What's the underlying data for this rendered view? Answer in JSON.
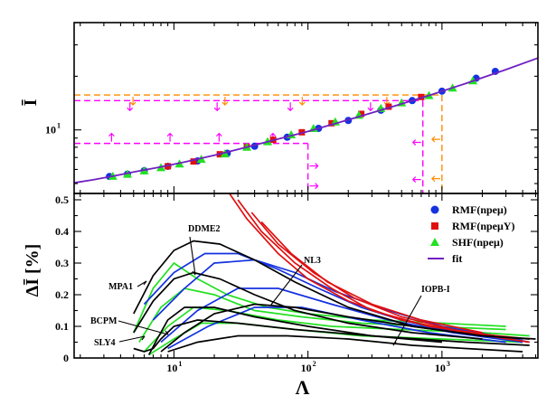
{
  "chart_data": [
    {
      "type": "scatter",
      "panel": "top",
      "ylabel": "Ī",
      "x_scale": "log",
      "y_scale": "log",
      "xlim": [
        1.8,
        5200
      ],
      "ylim": [
        4.4,
        40
      ],
      "y_ticks": [
        {
          "value": 10,
          "label": "10",
          "exp": "1"
        }
      ],
      "colors": {
        "rmf_npemu": "#1432e0",
        "rmf_npemuY": "#e01010",
        "shf_npemu": "#22e022",
        "fit": "#7020c0"
      },
      "series": [
        {
          "name": "fit",
          "kind": "line",
          "x": [
            1.8,
            2.5,
            3.5,
            5,
            8,
            12,
            20,
            35,
            60,
            100,
            200,
            400,
            800,
            1500,
            3000,
            5200
          ],
          "y": [
            5.05,
            5.25,
            5.5,
            5.8,
            6.2,
            6.6,
            7.2,
            8.0,
            8.9,
            9.8,
            11.4,
            13.3,
            15.6,
            18.2,
            21.8,
            25.3
          ]
        },
        {
          "name": "RMF(npeμ)",
          "kind": "scatter",
          "x": [
            3.3,
            4.5,
            6,
            9,
            15,
            25,
            40,
            70,
            120,
            200,
            350,
            600,
            1000,
            1800,
            2500
          ],
          "y": [
            5.48,
            5.65,
            5.9,
            6.25,
            6.7,
            7.4,
            8.1,
            9.1,
            10.2,
            11.3,
            12.9,
            14.6,
            16.5,
            19.5,
            21.3
          ]
        },
        {
          "name": "RMF(npeμY)",
          "kind": "scatter",
          "x": [
            9,
            14,
            22,
            35,
            55,
            90,
            150,
            250,
            400,
            700
          ],
          "y": [
            6.25,
            6.65,
            7.3,
            8.0,
            8.8,
            9.7,
            10.9,
            12.3,
            13.5,
            15.3
          ]
        },
        {
          "name": "SHF(npeμ)",
          "kind": "scatter",
          "x": [
            3.5,
            4.5,
            6,
            8,
            11,
            16,
            24,
            35,
            50,
            75,
            110,
            160,
            240,
            350,
            500,
            800,
            1200,
            1700
          ],
          "y": [
            5.5,
            5.65,
            5.9,
            6.15,
            6.45,
            6.85,
            7.35,
            8.0,
            8.6,
            9.4,
            10.2,
            11.1,
            12.1,
            13.2,
            14.2,
            15.6,
            17.2,
            18.9
          ]
        }
      ],
      "reference_lines": [
        {
          "color": "#ff00ff",
          "kind": "horizontal",
          "y": 8.4,
          "x_to": 100
        },
        {
          "color": "#ff00ff",
          "kind": "horizontal",
          "y": 14.6,
          "x_to": 720
        },
        {
          "color": "#ff8c00",
          "kind": "horizontal",
          "y": 15.7,
          "x_to": 1000
        },
        {
          "color": "#ff00ff",
          "kind": "vertical",
          "x": 100,
          "y_to": 8.4
        },
        {
          "color": "#ff00ff",
          "kind": "vertical",
          "x": 720,
          "y_to": 14.6
        },
        {
          "color": "#ff8c00",
          "kind": "vertical",
          "x": 1000,
          "y_to": 15.7
        }
      ]
    },
    {
      "type": "line",
      "panel": "bottom",
      "xlabel": "Λ",
      "ylabel": "ΔĪ [%]",
      "x_scale": "log",
      "xlim": [
        1.8,
        5200
      ],
      "ylim": [
        0,
        0.52
      ],
      "x_ticks": [
        {
          "value": 10,
          "label": "10",
          "exp": "1"
        },
        {
          "value": 100,
          "label": "10",
          "exp": "2"
        },
        {
          "value": 1000,
          "label": "10",
          "exp": "3"
        }
      ],
      "y_ticks": [
        "0",
        "0.1",
        "0.2",
        "0.3",
        "0.4",
        "0.5"
      ],
      "legend": {
        "position": "top-right",
        "entries": [
          "RMF(npeμ)",
          "RMF(npeμY)",
          "SHF(npeμ)",
          "fit"
        ]
      },
      "annotations": [
        "DDME2",
        "NL3",
        "MPA1",
        "IOPB-I",
        "BCPM",
        "SLY4"
      ],
      "series": [
        {
          "name": "RMF(npeμ)",
          "curves": [
            {
              "x": [
                6,
                10,
                17,
                30,
                60,
                120,
                250,
                500,
                1000,
                2000,
                4000
              ],
              "y": [
                0.17,
                0.27,
                0.33,
                0.33,
                0.28,
                0.22,
                0.16,
                0.12,
                0.09,
                0.07,
                0.06
              ]
            },
            {
              "x": [
                7,
                12,
                20,
                40,
                80,
                160,
                400,
                1000,
                2500,
                4500
              ],
              "y": [
                0.12,
                0.22,
                0.3,
                0.31,
                0.27,
                0.21,
                0.15,
                0.1,
                0.07,
                0.05
              ]
            },
            {
              "x": [
                8,
                15,
                30,
                60,
                150,
                400,
                1200,
                4000
              ],
              "y": [
                0.05,
                0.15,
                0.22,
                0.22,
                0.17,
                0.12,
                0.08,
                0.05
              ]
            },
            {
              "x": [
                9,
                18,
                40,
                90,
                250,
                800,
                3000
              ],
              "y": [
                0.03,
                0.1,
                0.16,
                0.16,
                0.12,
                0.08,
                0.05
              ]
            }
          ]
        },
        {
          "name": "RMF(npeμY)",
          "curves": [
            {
              "x": [
                25,
                35,
                60,
                100,
                200,
                500,
                1500,
                4500
              ],
              "y": [
                0.53,
                0.44,
                0.33,
                0.25,
                0.18,
                0.12,
                0.08,
                0.05
              ]
            },
            {
              "x": [
                30,
                45,
                80,
                150,
                300,
                800,
                2500
              ],
              "y": [
                0.5,
                0.4,
                0.3,
                0.22,
                0.15,
                0.1,
                0.07
              ]
            },
            {
              "x": [
                38,
                60,
                110,
                220,
                500,
                1500,
                4500
              ],
              "y": [
                0.46,
                0.36,
                0.27,
                0.19,
                0.13,
                0.08,
                0.06
              ]
            },
            {
              "x": [
                45,
                75,
                140,
                300,
                700,
                2000
              ],
              "y": [
                0.43,
                0.33,
                0.24,
                0.17,
                0.12,
                0.08
              ]
            }
          ]
        },
        {
          "name": "SHF(npeμ)",
          "curves": [
            {
              "x": [
                5,
                7,
                10,
                15,
                25,
                50,
                100,
                300,
                1000,
                3000
              ],
              "y": [
                0.08,
                0.22,
                0.3,
                0.25,
                0.2,
                0.16,
                0.14,
                0.12,
                0.11,
                0.1
              ]
            },
            {
              "x": [
                5.5,
                8,
                12,
                20,
                40,
                90,
                250,
                800,
                3000
              ],
              "y": [
                0.05,
                0.16,
                0.22,
                0.2,
                0.15,
                0.13,
                0.11,
                0.1,
                0.09
              ]
            },
            {
              "x": [
                6,
                9,
                14,
                25,
                60,
                150,
                500,
                2000,
                4500
              ],
              "y": [
                0.02,
                0.1,
                0.16,
                0.15,
                0.12,
                0.1,
                0.09,
                0.08,
                0.07
              ]
            },
            {
              "x": [
                6.5,
                10,
                16,
                30,
                80,
                250,
                1000,
                4000
              ],
              "y": [
                0.01,
                0.06,
                0.11,
                0.11,
                0.09,
                0.07,
                0.06,
                0.05
              ]
            }
          ]
        },
        {
          "name": "DDME2",
          "curves": [
            {
              "x": [
                5,
                7,
                10,
                14,
                22,
                40,
                80,
                200,
                600,
                2000,
                4500
              ],
              "y": [
                0.14,
                0.26,
                0.34,
                0.37,
                0.36,
                0.31,
                0.24,
                0.16,
                0.1,
                0.07,
                0.06
              ]
            }
          ]
        },
        {
          "name": "NL3",
          "curves": [
            {
              "x": [
                8,
                12,
                20,
                40,
                80,
                200,
                600,
                2000,
                5000
              ],
              "y": [
                0.02,
                0.08,
                0.14,
                0.17,
                0.16,
                0.13,
                0.1,
                0.07,
                0.06
              ]
            }
          ]
        },
        {
          "name": "MPA1",
          "curves": [
            {
              "x": [
                5,
                7,
                10,
                14,
                22,
                40,
                80,
                200,
                600,
                2000
              ],
              "y": [
                0.08,
                0.18,
                0.25,
                0.27,
                0.25,
                0.2,
                0.15,
                0.11,
                0.08,
                0.06
              ]
            }
          ]
        },
        {
          "name": "IOPB-I",
          "curves": [
            {
              "x": [
                9,
                15,
                30,
                70,
                200,
                600,
                1500,
                4000
              ],
              "y": [
                0.02,
                0.05,
                0.07,
                0.07,
                0.06,
                0.04,
                0.03,
                0.02
              ]
            }
          ]
        },
        {
          "name": "BCPM",
          "curves": [
            {
              "x": [
                6.5,
                7.5,
                9,
                12,
                20,
                40,
                100,
                300,
                1000
              ],
              "y": [
                0.01,
                0.06,
                0.12,
                0.16,
                0.16,
                0.13,
                0.1,
                0.07,
                0.05
              ]
            }
          ]
        },
        {
          "name": "SLY4",
          "curves": [
            {
              "x": [
                5,
                6,
                7,
                8,
                10,
                15,
                30,
                80,
                300,
                1500,
                4500
              ],
              "y": [
                0.03,
                0.02,
                0.03,
                0.06,
                0.1,
                0.12,
                0.11,
                0.09,
                0.07,
                0.05,
                0.04
              ]
            }
          ]
        }
      ]
    }
  ]
}
